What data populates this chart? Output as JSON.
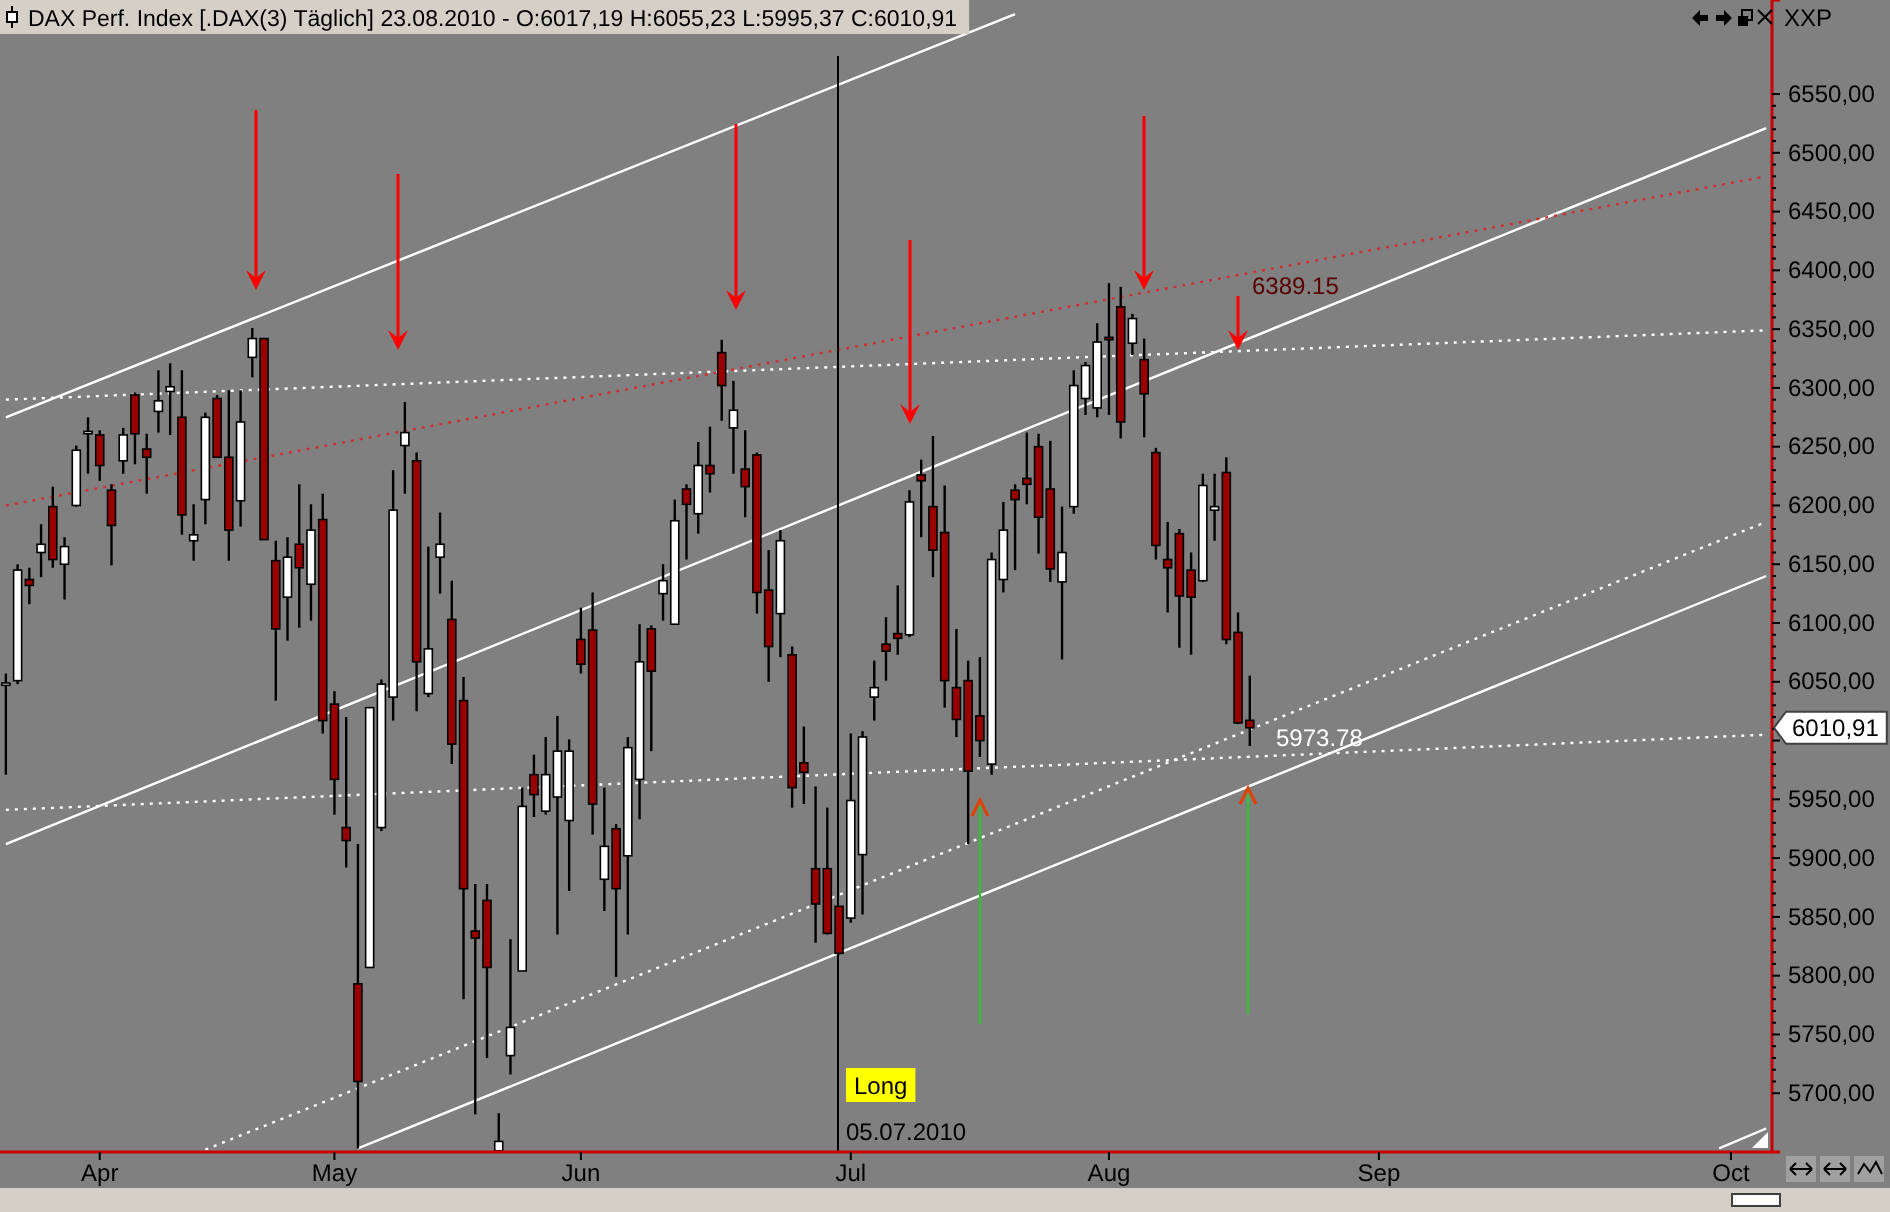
{
  "chart_data": {
    "type": "candlestick",
    "title": "DAX Perf. Index [.DAX(3)  Täglich] 23.08.2010 - O:6017,19 H:6055,23 L:5995,37 C:6010,91",
    "categories": [
      null,
      null,
      null,
      null,
      null,
      null,
      null,
      null,
      "Apr",
      null,
      null,
      null,
      null,
      null,
      null,
      null,
      null,
      null,
      null,
      null,
      null,
      null,
      null,
      null,
      null,
      null,
      null,
      null,
      "May",
      null,
      null,
      null,
      null,
      null,
      null,
      null,
      null,
      null,
      null,
      null,
      null,
      null,
      null,
      null,
      null,
      null,
      null,
      null,
      null,
      "Jun",
      null,
      null,
      null,
      null,
      null,
      null,
      null,
      null,
      null,
      null,
      null,
      null,
      null,
      null,
      null,
      null,
      null,
      null,
      null,
      null,
      null,
      null,
      "Jul",
      null,
      null,
      null,
      null,
      null,
      null,
      null,
      null,
      null,
      null,
      null,
      null,
      null,
      null,
      null,
      null,
      null,
      null,
      null,
      null,
      null,
      "Aug",
      null,
      null,
      null,
      null,
      null,
      null,
      null,
      null,
      null,
      null,
      null,
      null,
      null,
      null,
      null,
      null,
      null,
      null,
      null,
      null,
      null,
      null,
      "Sep",
      null,
      null,
      null,
      null,
      null,
      null,
      null,
      null,
      null,
      null,
      null,
      null,
      null,
      null,
      null,
      null,
      null,
      null,
      null,
      null,
      null,
      null,
      null,
      null,
      null,
      null,
      null,
      null,
      null,
      "Oct",
      null,
      null,
      null
    ],
    "ohlc": [
      [
        6047,
        6057,
        5971,
        6049
      ],
      [
        6051,
        6150,
        6048,
        6145
      ],
      [
        6137,
        6147,
        6116,
        6132
      ],
      [
        6160,
        6184,
        6139,
        6167
      ],
      [
        6199,
        6216,
        6147,
        6154
      ],
      [
        6150,
        6173,
        6120,
        6165
      ],
      [
        6200,
        6251,
        6199,
        6247
      ],
      [
        6261,
        6275,
        6227,
        6263
      ],
      [
        6260,
        6264,
        6221,
        6234
      ],
      [
        6213,
        6218,
        6149,
        6183
      ],
      [
        6238,
        6266,
        6227,
        6260
      ],
      [
        6294,
        6296,
        6235,
        6261
      ],
      [
        6248,
        6261,
        6210,
        6241
      ],
      [
        6280,
        6315,
        6262,
        6289
      ],
      [
        6297,
        6321,
        6260,
        6301
      ],
      [
        6275,
        6315,
        6175,
        6192
      ],
      [
        6170,
        6201,
        6153,
        6175
      ],
      [
        6205,
        6279,
        6184,
        6275
      ],
      [
        6291,
        6294,
        6241,
        6241
      ],
      [
        6241,
        6298,
        6153,
        6179
      ],
      [
        6204,
        6298,
        6182,
        6271
      ],
      [
        6326,
        6351,
        6309,
        6342
      ],
      [
        6342,
        6342,
        6171,
        6171
      ],
      [
        6153,
        6170,
        6034,
        6095
      ],
      [
        6122,
        6173,
        6085,
        6156
      ],
      [
        6167,
        6218,
        6096,
        6147
      ],
      [
        6133,
        6201,
        6102,
        6179
      ],
      [
        6188,
        6210,
        6006,
        6017
      ],
      [
        6031,
        6042,
        5937,
        5967
      ],
      [
        5926,
        6020,
        5892,
        5915
      ],
      [
        5793,
        5912,
        5653,
        5710
      ],
      [
        5807,
        6028,
        5807,
        6028
      ],
      [
        5926,
        6052,
        5923,
        6048
      ],
      [
        6037,
        6230,
        6017,
        6196
      ],
      [
        6251,
        6288,
        6210,
        6262
      ],
      [
        6238,
        6245,
        6025,
        6067
      ],
      [
        6040,
        6165,
        6037,
        6078
      ],
      [
        6156,
        6194,
        6125,
        6167
      ],
      [
        6103,
        6136,
        5980,
        5997
      ],
      [
        6034,
        6054,
        5780,
        5874
      ],
      [
        5838,
        5878,
        5682,
        5832
      ],
      [
        5864,
        5878,
        5730,
        5807
      ],
      [
        5651,
        5683,
        5650,
        5659
      ],
      [
        5732,
        5831,
        5716,
        5756
      ],
      [
        5804,
        5960,
        5804,
        5944
      ],
      [
        5971,
        5988,
        5935,
        5954
      ],
      [
        5940,
        6003,
        5937,
        5971
      ],
      [
        5952,
        6021,
        5835,
        5991
      ],
      [
        5932,
        6001,
        5872,
        5991
      ],
      [
        6086,
        6113,
        6057,
        6065
      ],
      [
        6094,
        6126,
        5920,
        5946
      ],
      [
        5882,
        5960,
        5855,
        5910
      ],
      [
        5925,
        5929,
        5799,
        5874
      ],
      [
        5902,
        6003,
        5835,
        5994
      ],
      [
        5967,
        6099,
        5933,
        6067
      ],
      [
        6095,
        6098,
        5991,
        6059
      ],
      [
        6125,
        6150,
        6102,
        6136
      ],
      [
        6099,
        6205,
        6099,
        6187
      ],
      [
        6214,
        6218,
        6154,
        6201
      ],
      [
        6193,
        6254,
        6176,
        6234
      ],
      [
        6234,
        6267,
        6211,
        6227
      ],
      [
        6330,
        6341,
        6272,
        6302
      ],
      [
        6266,
        6306,
        6227,
        6281
      ],
      [
        6231,
        6264,
        6190,
        6216
      ],
      [
        6243,
        6245,
        6108,
        6126
      ],
      [
        6128,
        6162,
        6050,
        6080
      ],
      [
        6108,
        6179,
        6071,
        6170
      ],
      [
        6073,
        6080,
        5943,
        5960
      ],
      [
        5981,
        6012,
        5946,
        5973
      ],
      [
        5891,
        5961,
        5828,
        5861
      ],
      [
        5891,
        5943,
        5835,
        5836
      ],
      [
        5859,
        5859,
        5818,
        5819
      ],
      [
        5849,
        6006,
        5845,
        5949
      ],
      [
        5903,
        6008,
        5852,
        6003
      ],
      [
        6037,
        6068,
        6017,
        6045
      ],
      [
        6082,
        6105,
        6051,
        6076
      ],
      [
        6091,
        6132,
        6073,
        6087
      ],
      [
        6090,
        6213,
        6088,
        6203
      ],
      [
        6226,
        6239,
        6173,
        6221
      ],
      [
        6199,
        6259,
        6139,
        6162
      ],
      [
        6177,
        6217,
        6028,
        6051
      ],
      [
        6045,
        6095,
        6003,
        6018
      ],
      [
        6051,
        6068,
        5912,
        5974
      ],
      [
        6021,
        6071,
        5986,
        6000
      ],
      [
        5980,
        6160,
        5971,
        6154
      ],
      [
        6137,
        6203,
        6126,
        6179
      ],
      [
        6213,
        6218,
        6145,
        6205
      ],
      [
        6223,
        6262,
        6201,
        6218
      ],
      [
        6250,
        6261,
        6159,
        6190
      ],
      [
        6214,
        6255,
        6135,
        6146
      ],
      [
        6135,
        6199,
        6069,
        6160
      ],
      [
        6199,
        6315,
        6193,
        6302
      ],
      [
        6291,
        6322,
        6277,
        6319
      ],
      [
        6283,
        6355,
        6275,
        6339
      ],
      [
        6343,
        6389.15,
        6277,
        6341
      ],
      [
        6369,
        6386,
        6257,
        6271
      ],
      [
        6338,
        6363,
        6328,
        6359
      ],
      [
        6324,
        6342,
        6258,
        6295
      ],
      [
        6245,
        6249,
        6154,
        6166
      ],
      [
        6154,
        6186,
        6109,
        6147
      ],
      [
        6176,
        6180,
        6079,
        6123
      ],
      [
        6145,
        6160,
        6073,
        6122
      ],
      [
        6136,
        6227,
        6135,
        6217
      ],
      [
        6196,
        6227,
        6170,
        6199
      ],
      [
        6228,
        6241,
        6082,
        6086
      ],
      [
        6092,
        6109,
        6014,
        6015
      ],
      [
        6017.19,
        6055.23,
        5995.37,
        6010.91
      ],
      null,
      null,
      null,
      null,
      null,
      null,
      null,
      null,
      null,
      null,
      null,
      null,
      null,
      null,
      null,
      null,
      null,
      null,
      null,
      null,
      null,
      null,
      null,
      null,
      null,
      null,
      null,
      null,
      null,
      null,
      null,
      null,
      null,
      null,
      null,
      null,
      null,
      null,
      null,
      null,
      null,
      null,
      null,
      null
    ],
    "series": [
      {
        "type": "line",
        "color": "#ffffff",
        "line_style": "solid",
        "values": [
          6275,
          null,
          null,
          null,
          null,
          null,
          null,
          null,
          null,
          null,
          null,
          null,
          null,
          null,
          null,
          null,
          null,
          null,
          null,
          null,
          null,
          null,
          null,
          null,
          null,
          null,
          null,
          null,
          null,
          null,
          null,
          null,
          null,
          null,
          null,
          null,
          null,
          null,
          null,
          null,
          null,
          null,
          null,
          null,
          null,
          null,
          null,
          null,
          null,
          null,
          null,
          null,
          null,
          null,
          null,
          null,
          null,
          null,
          null,
          null,
          null,
          null,
          null,
          null,
          null,
          null,
          null,
          null,
          null,
          null,
          null,
          null,
          null,
          null,
          null,
          null,
          null,
          null,
          null,
          null,
          null,
          null,
          null,
          null,
          null,
          null,
          6618,
          null,
          null,
          null,
          null,
          null,
          null,
          null,
          null,
          null,
          null,
          null,
          null,
          null,
          null,
          null,
          null,
          null,
          null,
          null,
          null,
          null,
          null,
          null,
          null,
          null,
          null,
          null,
          null,
          null,
          null,
          null,
          null,
          null,
          null,
          null,
          null,
          null,
          null,
          null,
          null,
          null,
          null,
          null,
          null,
          null,
          null,
          null,
          null,
          null,
          null,
          null,
          null,
          null,
          null,
          null,
          null,
          null,
          null,
          null,
          null,
          null,
          null,
          null,
          null
        ]
      },
      {
        "type": "line",
        "color": "#ffffff",
        "line_style": "solid",
        "values": [
          5912,
          null,
          null,
          null,
          null,
          null,
          null,
          null,
          null,
          null,
          null,
          null,
          null,
          null,
          null,
          null,
          null,
          null,
          null,
          null,
          null,
          null,
          null,
          null,
          null,
          null,
          null,
          null,
          null,
          null,
          null,
          null,
          null,
          null,
          null,
          null,
          null,
          null,
          null,
          null,
          null,
          null,
          null,
          null,
          null,
          null,
          null,
          null,
          null,
          null,
          null,
          null,
          null,
          null,
          null,
          null,
          null,
          null,
          null,
          null,
          null,
          null,
          null,
          null,
          null,
          null,
          null,
          null,
          null,
          null,
          null,
          null,
          null,
          null,
          null,
          null,
          null,
          null,
          null,
          null,
          null,
          null,
          null,
          null,
          null,
          null,
          null,
          null,
          null,
          null,
          null,
          null,
          null,
          null,
          null,
          null,
          null,
          null,
          null,
          null,
          null,
          null,
          null,
          null,
          null,
          null,
          null,
          null,
          null,
          null,
          null,
          null,
          null,
          null,
          null,
          null,
          null,
          null,
          null,
          null,
          null,
          null,
          null,
          null,
          null,
          null,
          null,
          null,
          null,
          null,
          null,
          null,
          null,
          null,
          null,
          null,
          null,
          null,
          null,
          null,
          null,
          null,
          null,
          null,
          null,
          null,
          null,
          null,
          null,
          null,
          6521
        ]
      },
      {
        "type": "line",
        "color": "#ffffff",
        "line_style": "solid",
        "values": [
          null,
          null,
          null,
          null,
          null,
          null,
          null,
          null,
          null,
          null,
          null,
          null,
          null,
          null,
          null,
          null,
          null,
          null,
          null,
          null,
          null,
          null,
          null,
          null,
          null,
          null,
          null,
          null,
          null,
          null,
          5653,
          null,
          null,
          null,
          null,
          null,
          null,
          null,
          null,
          null,
          null,
          null,
          null,
          null,
          null,
          null,
          null,
          null,
          null,
          null,
          null,
          null,
          null,
          null,
          null,
          null,
          null,
          null,
          null,
          null,
          null,
          null,
          null,
          null,
          null,
          null,
          null,
          null,
          null,
          null,
          null,
          null,
          null,
          null,
          null,
          null,
          null,
          null,
          null,
          null,
          null,
          null,
          null,
          null,
          null,
          null,
          null,
          null,
          null,
          null,
          null,
          null,
          null,
          null,
          null,
          null,
          null,
          null,
          null,
          null,
          null,
          null,
          null,
          null,
          null,
          null,
          null,
          null,
          null,
          null,
          null,
          null,
          null,
          null,
          null,
          null,
          null,
          null,
          null,
          null,
          null,
          null,
          null,
          null,
          null,
          null,
          null,
          null,
          null,
          null,
          null,
          null,
          null,
          null,
          null,
          null,
          null,
          null,
          null,
          null,
          null,
          null,
          null,
          null,
          null,
          null,
          null,
          null,
          null,
          null,
          6140
        ]
      },
      {
        "type": "line",
        "color": "#ffffff",
        "line_style": "solid",
        "values": [
          null,
          null,
          null,
          null,
          null,
          null,
          null,
          null,
          null,
          null,
          null,
          null,
          null,
          null,
          null,
          null,
          null,
          null,
          null,
          null,
          null,
          null,
          null,
          null,
          null,
          null,
          null,
          null,
          null,
          null,
          null,
          null,
          null,
          null,
          null,
          null,
          null,
          null,
          null,
          null,
          null,
          null,
          null,
          null,
          null,
          null,
          null,
          null,
          null,
          null,
          null,
          null,
          null,
          null,
          null,
          null,
          null,
          null,
          null,
          null,
          null,
          null,
          null,
          null,
          null,
          null,
          null,
          null,
          null,
          null,
          null,
          null,
          null,
          null,
          null,
          null,
          null,
          null,
          null,
          null,
          null,
          null,
          null,
          null,
          null,
          null,
          null,
          null,
          null,
          null,
          null,
          null,
          null,
          null,
          null,
          null,
          null,
          null,
          null,
          null,
          null,
          null,
          null,
          null,
          null,
          null,
          null,
          null,
          null,
          null,
          null,
          null,
          null,
          null,
          null,
          null,
          null,
          null,
          null,
          null,
          null,
          null,
          null,
          null,
          null,
          null,
          null,
          null,
          null,
          null,
          null,
          null,
          null,
          null,
          null,
          null,
          null,
          null,
          null,
          null,
          null,
          null,
          null,
          null,
          null,
          null,
          5653,
          null,
          null,
          null,
          5670
        ]
      },
      {
        "type": "line",
        "color": "#d03030",
        "line_style": "dotted",
        "values": [
          6200,
          null,
          null,
          null,
          null,
          null,
          null,
          null,
          null,
          null,
          null,
          null,
          null,
          null,
          null,
          null,
          null,
          null,
          null,
          null,
          null,
          null,
          null,
          null,
          null,
          null,
          null,
          null,
          null,
          null,
          null,
          null,
          null,
          null,
          null,
          null,
          null,
          null,
          null,
          null,
          null,
          null,
          null,
          null,
          null,
          null,
          null,
          null,
          null,
          null,
          null,
          null,
          null,
          null,
          null,
          null,
          null,
          null,
          null,
          null,
          null,
          null,
          null,
          null,
          null,
          null,
          null,
          null,
          null,
          null,
          null,
          null,
          null,
          null,
          null,
          null,
          null,
          null,
          null,
          null,
          null,
          null,
          null,
          null,
          null,
          null,
          null,
          null,
          null,
          null,
          null,
          null,
          null,
          null,
          null,
          null,
          null,
          null,
          null,
          null,
          null,
          null,
          null,
          null,
          null,
          null,
          null,
          null,
          null,
          null,
          null,
          null,
          null,
          null,
          null,
          null,
          null,
          null,
          null,
          null,
          null,
          null,
          null,
          null,
          null,
          null,
          null,
          null,
          null,
          null,
          null,
          null,
          null,
          null,
          null,
          null,
          null,
          null,
          null,
          null,
          null,
          null,
          null,
          null,
          null,
          null,
          null,
          null,
          null,
          null,
          6480
        ]
      },
      {
        "type": "line",
        "color": "#ffffff",
        "line_style": "dotted",
        "values": [
          6290,
          null,
          null,
          null,
          null,
          null,
          null,
          null,
          null,
          null,
          null,
          null,
          null,
          null,
          null,
          null,
          null,
          null,
          null,
          null,
          null,
          null,
          null,
          null,
          null,
          null,
          null,
          null,
          null,
          null,
          null,
          null,
          null,
          null,
          null,
          null,
          null,
          null,
          null,
          null,
          null,
          null,
          null,
          null,
          null,
          null,
          null,
          null,
          null,
          null,
          null,
          null,
          null,
          null,
          null,
          null,
          null,
          null,
          null,
          null,
          null,
          null,
          null,
          null,
          null,
          null,
          null,
          null,
          null,
          null,
          null,
          null,
          null,
          null,
          null,
          null,
          null,
          null,
          null,
          null,
          null,
          null,
          null,
          null,
          null,
          null,
          null,
          null,
          null,
          null,
          null,
          null,
          null,
          null,
          null,
          null,
          null,
          null,
          null,
          null,
          null,
          null,
          null,
          null,
          null,
          null,
          null,
          null,
          null,
          null,
          null,
          null,
          null,
          null,
          null,
          null,
          null,
          null,
          null,
          null,
          null,
          null,
          null,
          null,
          null,
          null,
          null,
          null,
          null,
          null,
          null,
          null,
          null,
          null,
          null,
          null,
          null,
          null,
          null,
          null,
          null,
          null,
          null,
          null,
          null,
          null,
          null,
          null,
          null,
          null,
          6349
        ]
      },
      {
        "type": "line",
        "color": "#ffffff",
        "line_style": "dotted",
        "values": [
          5941,
          null,
          null,
          null,
          null,
          null,
          null,
          null,
          null,
          null,
          null,
          null,
          null,
          null,
          null,
          null,
          null,
          null,
          null,
          null,
          null,
          null,
          null,
          null,
          null,
          null,
          null,
          null,
          null,
          null,
          null,
          null,
          null,
          null,
          null,
          null,
          null,
          null,
          null,
          null,
          null,
          null,
          null,
          null,
          null,
          null,
          null,
          null,
          null,
          null,
          null,
          null,
          null,
          null,
          null,
          null,
          null,
          null,
          null,
          null,
          null,
          null,
          null,
          null,
          null,
          null,
          null,
          null,
          null,
          null,
          null,
          null,
          null,
          null,
          null,
          null,
          null,
          null,
          null,
          null,
          null,
          null,
          null,
          null,
          null,
          null,
          null,
          null,
          null,
          null,
          null,
          null,
          null,
          null,
          null,
          null,
          null,
          null,
          null,
          null,
          null,
          null,
          null,
          null,
          null,
          null,
          null,
          null,
          null,
          null,
          null,
          null,
          null,
          null,
          null,
          null,
          null,
          null,
          null,
          null,
          null,
          null,
          null,
          null,
          null,
          null,
          null,
          null,
          null,
          null,
          null,
          null,
          null,
          null,
          null,
          null,
          null,
          null,
          null,
          null,
          null,
          null,
          null,
          null,
          null,
          null,
          null,
          null,
          null,
          null,
          6005
        ]
      },
      {
        "type": "line",
        "color": "#ffffff",
        "line_style": "dotted",
        "values": [
          null,
          null,
          null,
          null,
          null,
          null,
          null,
          null,
          null,
          null,
          null,
          null,
          null,
          null,
          null,
          null,
          null,
          5652,
          null,
          null,
          null,
          null,
          null,
          null,
          null,
          null,
          null,
          null,
          null,
          null,
          null,
          null,
          null,
          null,
          null,
          null,
          null,
          null,
          null,
          null,
          null,
          null,
          null,
          null,
          null,
          null,
          null,
          null,
          null,
          null,
          null,
          null,
          null,
          null,
          null,
          null,
          null,
          null,
          null,
          null,
          null,
          null,
          null,
          null,
          null,
          null,
          null,
          null,
          null,
          null,
          null,
          null,
          null,
          null,
          null,
          null,
          null,
          null,
          null,
          null,
          null,
          null,
          null,
          null,
          null,
          null,
          null,
          null,
          null,
          null,
          null,
          null,
          null,
          null,
          null,
          null,
          null,
          null,
          null,
          null,
          null,
          null,
          null,
          null,
          null,
          null,
          null,
          null,
          null,
          null,
          null,
          null,
          null,
          null,
          null,
          null,
          null,
          null,
          null,
          null,
          null,
          null,
          null,
          null,
          null,
          null,
          null,
          null,
          null,
          null,
          null,
          null,
          null,
          null,
          null,
          null,
          null,
          null,
          null,
          null,
          null,
          null,
          null,
          null,
          null,
          null,
          null,
          null,
          null,
          null,
          6186
        ]
      }
    ],
    "annotations": [
      "6389.15",
      "5973.78",
      "Long",
      "6010,91",
      "XXP",
      "05.07.2010"
    ],
    "ylim": [
      5650,
      6630
    ],
    "yticks": [
      {
        "value": 5700,
        "label": "5700,00"
      },
      {
        "value": 5750,
        "label": "5750,00"
      },
      {
        "value": 5800,
        "label": "5800,00"
      },
      {
        "value": 5850,
        "label": "5850,00"
      },
      {
        "value": 5900,
        "label": "5900,00"
      },
      {
        "value": 5950,
        "label": "5950,00"
      },
      {
        "value": 6000,
        "label": null
      },
      {
        "value": 6050,
        "label": "6050,00"
      },
      {
        "value": 6100,
        "label": "6100,00"
      },
      {
        "value": 6150,
        "label": "6150,00"
      },
      {
        "value": 6200,
        "label": "6200,00"
      },
      {
        "value": 6250,
        "label": "6250,00"
      },
      {
        "value": 6300,
        "label": "6300,00"
      },
      {
        "value": 6350,
        "label": "6350,00"
      },
      {
        "value": 6400,
        "label": "6400,00"
      },
      {
        "value": 6450,
        "label": "6450,00"
      },
      {
        "value": 6500,
        "label": "6500,00"
      },
      {
        "value": 6550,
        "label": "6550,00"
      }
    ]
  }
}
